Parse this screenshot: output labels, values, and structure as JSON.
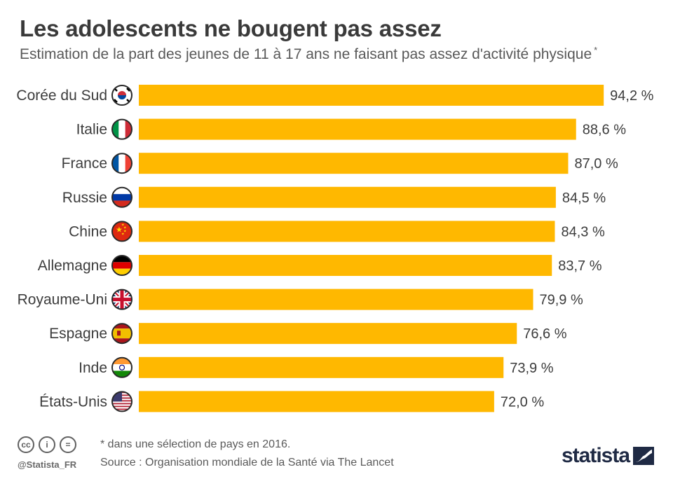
{
  "header": {
    "title": "Les adolescents ne bougent pas assez",
    "subtitle": "Estimation de la part des jeunes de 11 à 17 ans ne faisant pas assez d'activité physique",
    "subtitle_marker": "*"
  },
  "chart_data": {
    "type": "bar",
    "orientation": "horizontal",
    "title": "Les adolescents ne bougent pas assez",
    "xlabel": "",
    "ylabel": "",
    "xlim": [
      0,
      100
    ],
    "unit": "%",
    "bar_color": "#ffb800",
    "categories": [
      "Corée du Sud",
      "Italie",
      "France",
      "Russie",
      "Chine",
      "Allemagne",
      "Royaume-Uni",
      "Espagne",
      "Inde",
      "États-Unis"
    ],
    "values": [
      94.2,
      88.6,
      87.0,
      84.5,
      84.3,
      83.7,
      79.9,
      76.6,
      73.9,
      72.0
    ],
    "value_labels": [
      "94,2 %",
      "88,6 %",
      "87,0 %",
      "84,5 %",
      "84,3 %",
      "83,7 %",
      "79,9 %",
      "76,6 %",
      "73,9 %",
      "72,0 %"
    ],
    "flag_icons": [
      "south-korea-flag-icon",
      "italy-flag-icon",
      "france-flag-icon",
      "russia-flag-icon",
      "china-flag-icon",
      "germany-flag-icon",
      "uk-flag-icon",
      "spain-flag-icon",
      "india-flag-icon",
      "usa-flag-icon"
    ]
  },
  "footer": {
    "license_icons": [
      "cc",
      "by",
      "nd"
    ],
    "license_glyphs": [
      "cc",
      "i",
      "="
    ],
    "handle": "@Statista_FR",
    "note": "* dans une sélection de pays en 2016.",
    "source": "Source : Organisation mondiale de la Santé via The Lancet",
    "brand": "statista"
  }
}
